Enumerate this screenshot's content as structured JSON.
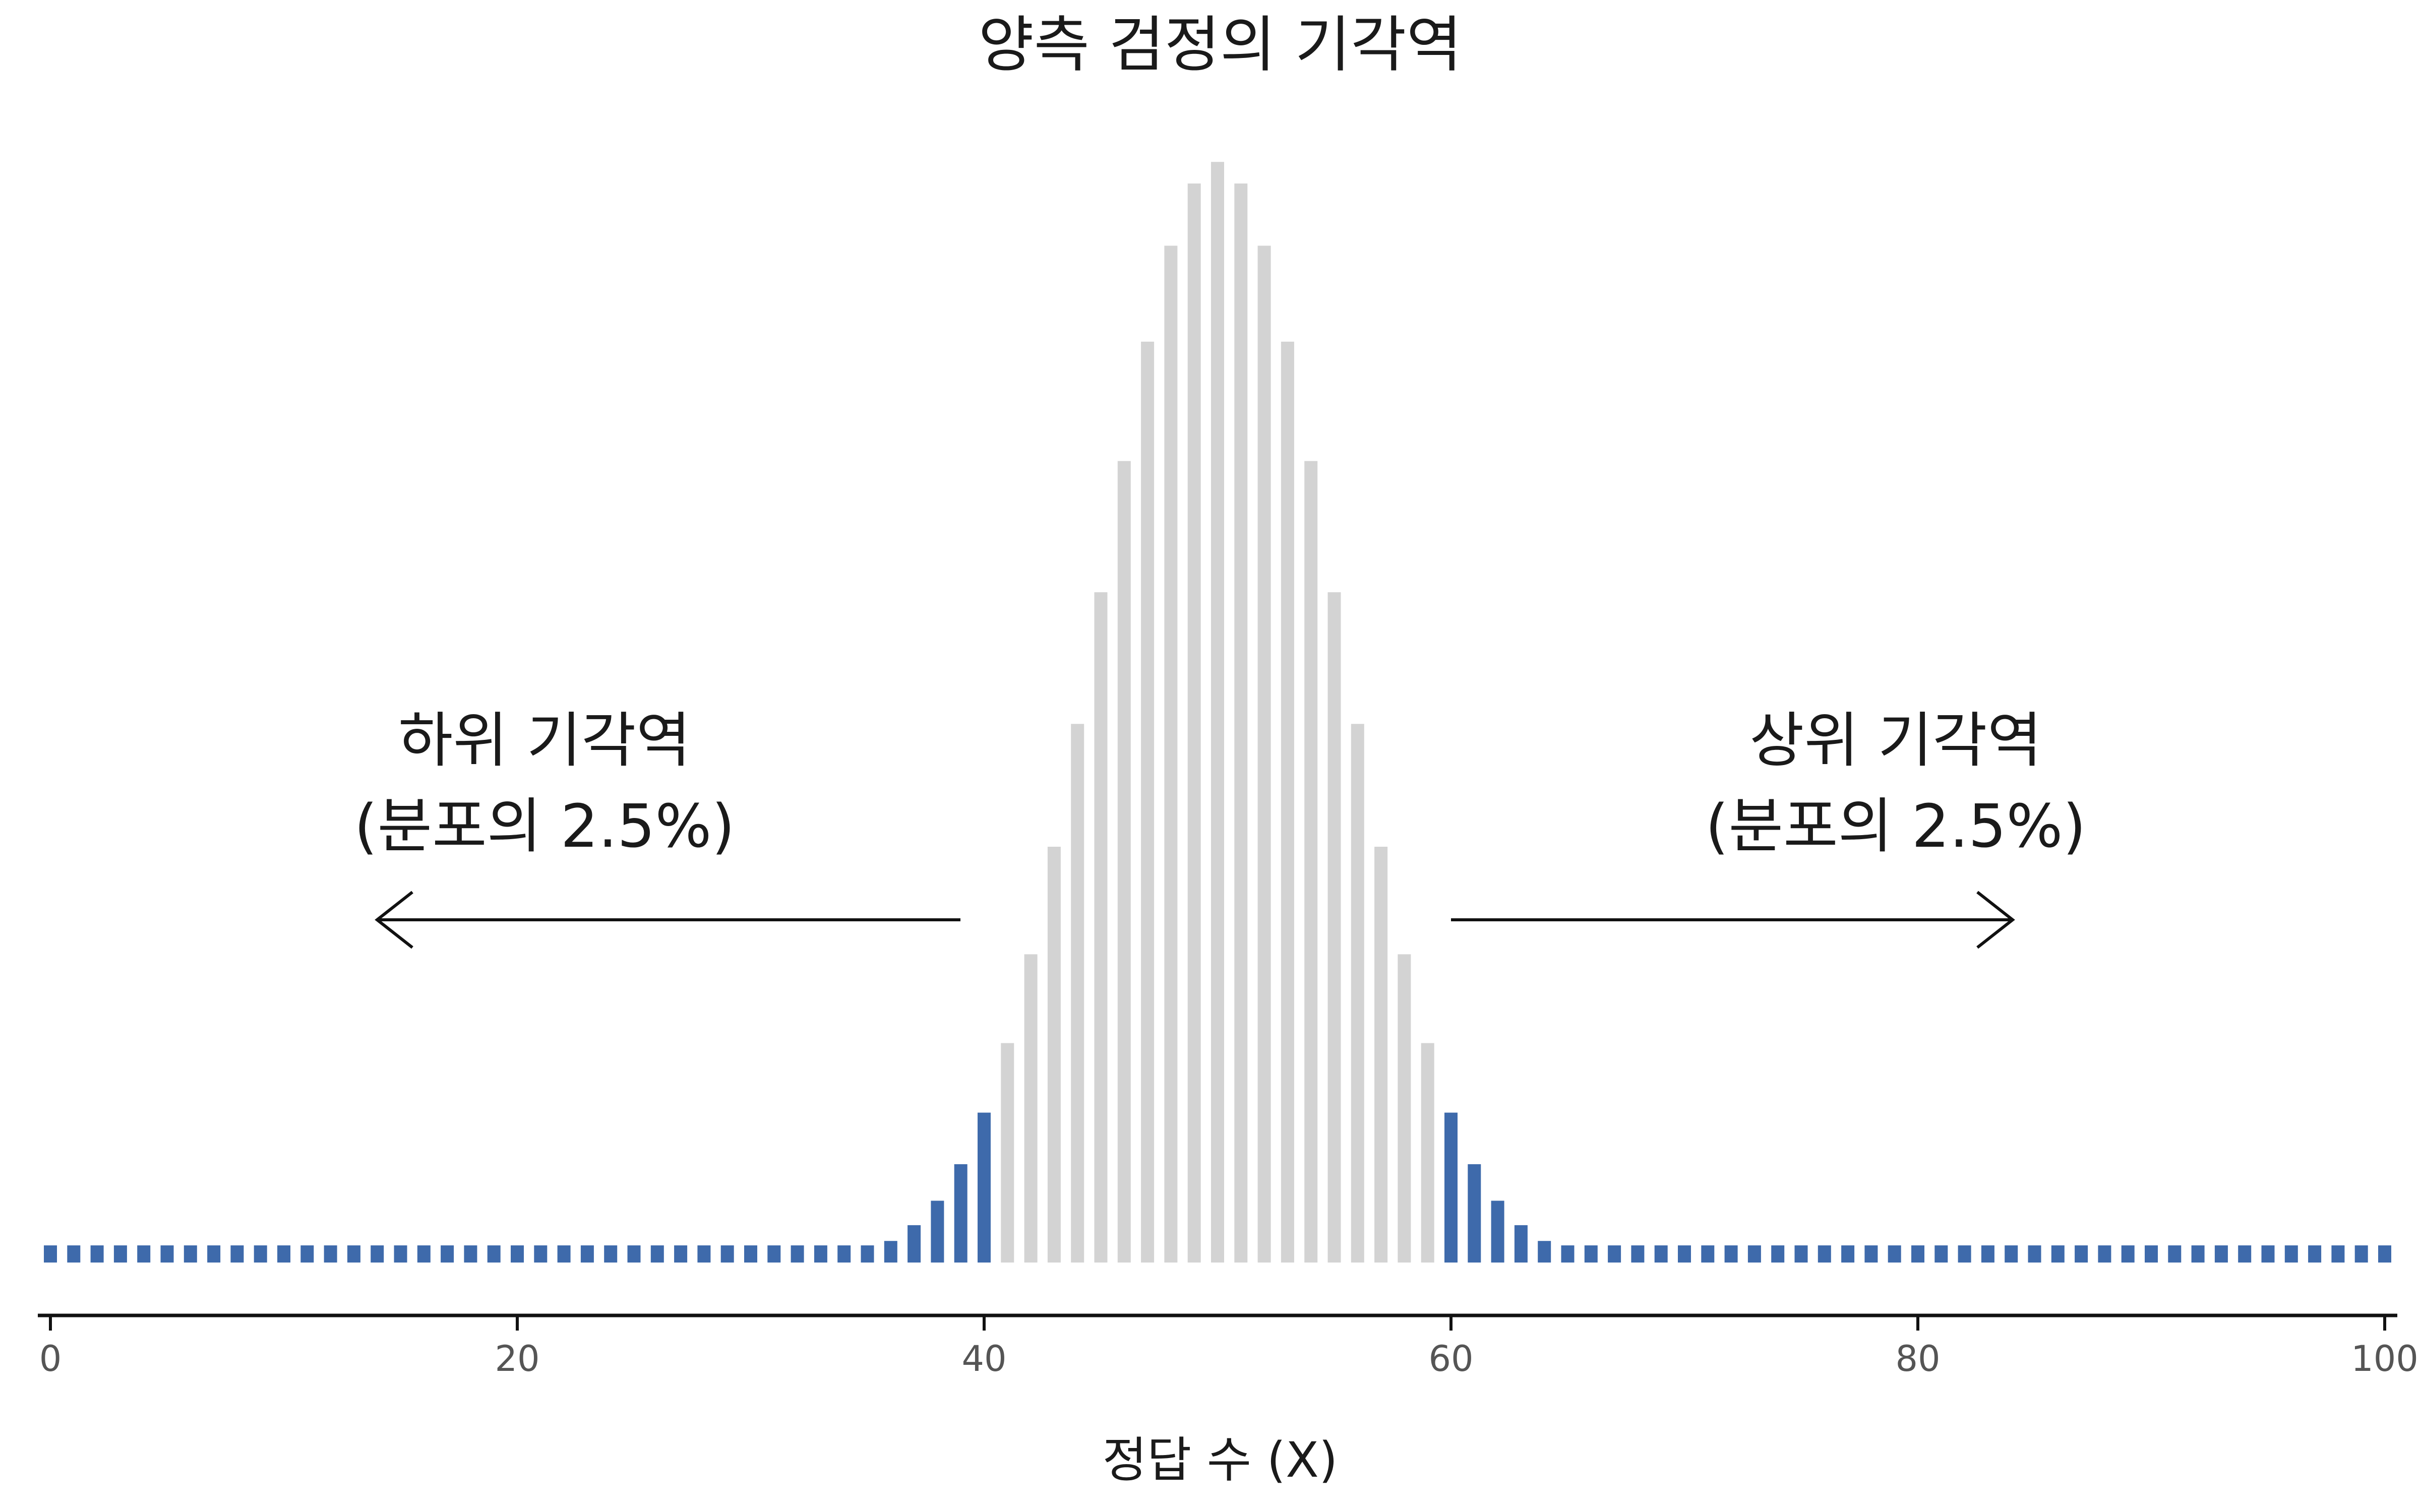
{
  "chart_data": {
    "type": "bar",
    "title": "양측 검정의 기각역",
    "xlabel": "정답 수 (X)",
    "ylabel": "",
    "x": [
      0,
      1,
      2,
      3,
      4,
      5,
      6,
      7,
      8,
      9,
      10,
      11,
      12,
      13,
      14,
      15,
      16,
      17,
      18,
      19,
      20,
      21,
      22,
      23,
      24,
      25,
      26,
      27,
      28,
      29,
      30,
      31,
      32,
      33,
      34,
      35,
      36,
      37,
      38,
      39,
      40,
      41,
      42,
      43,
      44,
      45,
      46,
      47,
      48,
      49,
      50,
      51,
      52,
      53,
      54,
      55,
      56,
      57,
      58,
      59,
      60,
      61,
      62,
      63,
      64,
      65,
      66,
      67,
      68,
      69,
      70,
      71,
      72,
      73,
      74,
      75,
      76,
      77,
      78,
      79,
      80,
      81,
      82,
      83,
      84,
      85,
      86,
      87,
      88,
      89,
      90,
      91,
      92,
      93,
      94,
      95,
      96,
      97,
      98,
      99,
      100
    ],
    "values": [
      0.0,
      0.0,
      0.0,
      0.0,
      0.0,
      0.0,
      0.0,
      0.0,
      0.0,
      0.0,
      0.0,
      0.0,
      0.0,
      0.0,
      0.0,
      0.0,
      0.0,
      0.0,
      0.0,
      0.0,
      0.0,
      0.0,
      0.0,
      0.0,
      0.0,
      0.0,
      0.0,
      0.0,
      0.0,
      0.0,
      2e-05,
      5e-05,
      0.00011,
      0.00023,
      0.00046,
      0.00086,
      0.00156,
      0.0027,
      0.00447,
      0.00711,
      0.01084,
      0.01587,
      0.02229,
      0.03007,
      0.03895,
      0.04847,
      0.05796,
      0.06659,
      0.07353,
      0.07803,
      0.07959,
      0.07803,
      0.07353,
      0.06659,
      0.05796,
      0.04847,
      0.03895,
      0.03007,
      0.02229,
      0.01587,
      0.01084,
      0.00711,
      0.00447,
      0.0027,
      0.00156,
      0.00086,
      0.00046,
      0.00023,
      0.00011,
      5e-05,
      2e-05,
      0.0,
      0.0,
      0.0,
      0.0,
      0.0,
      0.0,
      0.0,
      0.0,
      0.0,
      0.0,
      0.0,
      0.0,
      0.0,
      0.0,
      0.0,
      0.0,
      0.0,
      0.0,
      0.0,
      0.0,
      0.0,
      0.0,
      0.0,
      0.0,
      0.0,
      0.0,
      0.0,
      0.0,
      0.0,
      0.0
    ],
    "rejection_lower_max": 40,
    "rejection_upper_min": 60,
    "xlim": [
      0,
      100
    ],
    "ylim": [
      0,
      0.08
    ],
    "xticks": [
      0,
      20,
      40,
      60,
      80,
      100
    ],
    "grid": false,
    "legend": "none",
    "annotations": {
      "lower": {
        "line1": "하위 기각역",
        "line2": "(분포의 2.5%)",
        "arrow": "left"
      },
      "upper": {
        "line1": "상위 기각역",
        "line2": "(분포의 2.5%)",
        "arrow": "right"
      }
    },
    "colors": {
      "rejection": "#3e6aab",
      "acceptance": "#d3d3d3",
      "axis": "#111111",
      "text": "#1a1a1a",
      "tick_text": "#555555"
    }
  }
}
